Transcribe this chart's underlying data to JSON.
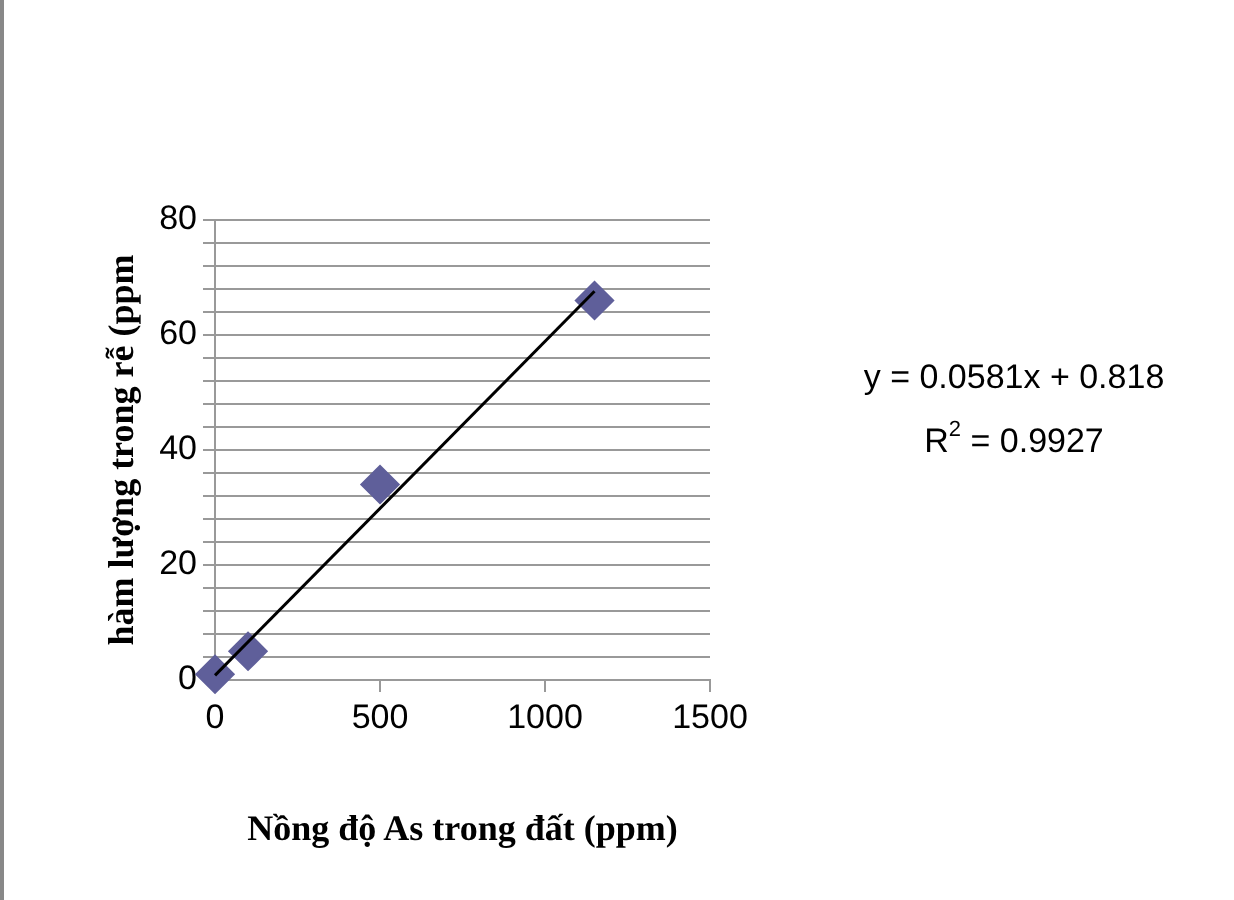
{
  "chart_data": {
    "type": "scatter",
    "xlabel": "Nồng độ As trong đất (ppm)",
    "ylabel": "hàm lượng trong rễ (ppm",
    "x": [
      0,
      100,
      500,
      1150
    ],
    "series": [
      {
        "type": "scatter",
        "color": "#5f5f9a",
        "values": [
          1,
          5,
          34,
          66
        ],
        "marker": "diamond"
      },
      {
        "type": "line",
        "color": "#000000",
        "x": [
          0,
          1150
        ],
        "values": [
          0.8,
          67.6
        ],
        "marker": "none"
      }
    ],
    "xlim": [
      0,
      1500
    ],
    "xticks": [
      0,
      500,
      1000,
      1500
    ],
    "ylim": [
      0,
      80
    ],
    "yticks": [
      0,
      {
        "value": 4,
        "label": null
      },
      {
        "value": 8,
        "label": null
      },
      {
        "value": 12,
        "label": null
      },
      {
        "value": 16,
        "label": null
      },
      20,
      {
        "value": 24,
        "label": null
      },
      {
        "value": 28,
        "label": null
      },
      {
        "value": 32,
        "label": null
      },
      {
        "value": 36,
        "label": null
      },
      40,
      {
        "value": 44,
        "label": null
      },
      {
        "value": 48,
        "label": null
      },
      {
        "value": 52,
        "label": null
      },
      {
        "value": 56,
        "label": null
      },
      60,
      {
        "value": 64,
        "label": null
      },
      {
        "value": 68,
        "label": null
      },
      {
        "value": 72,
        "label": null
      },
      {
        "value": 76,
        "label": null
      },
      80
    ],
    "grid": "y",
    "legend": false,
    "annotations": [
      "y = 0.0581x + 0.818",
      "R$^{2}$ = 0.9927"
    ]
  }
}
